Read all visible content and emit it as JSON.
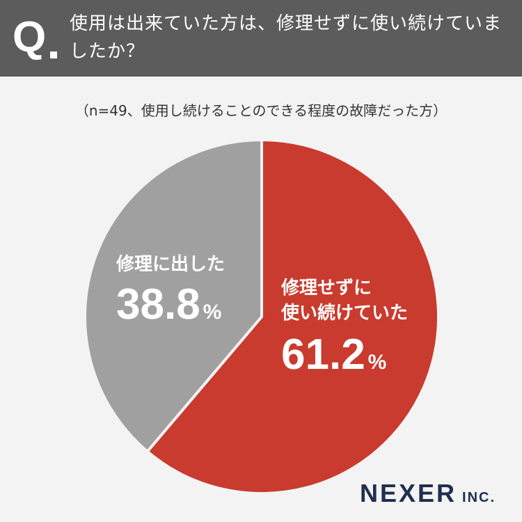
{
  "question": {
    "mark": "Q",
    "text": "使用は出来ていた方は、修理せずに使い続けていましたか？"
  },
  "note": "（n=49、使用し続けることのできる程度の故障だった方）",
  "chart_data": {
    "type": "pie",
    "slices": [
      {
        "label": "修理せずに使い続けていた",
        "label_lines": [
          "修理せずに",
          "使い続けていた"
        ],
        "value": 61.2,
        "display": "61.2",
        "unit": "%",
        "color": "#c93b2f"
      },
      {
        "label": "修理に出した",
        "label_lines": [
          "修理に出した"
        ],
        "value": 38.8,
        "display": "38.8",
        "unit": "%",
        "color": "#a0a0a0"
      }
    ],
    "start": "12 o'clock",
    "direction": "clockwise"
  },
  "logo": {
    "main": "NEXER",
    "suffix": "INC."
  },
  "colors": {
    "header_bg": "#5b5c5b",
    "page_bg": "#f3f3f3",
    "logo": "#1f2f4d"
  }
}
